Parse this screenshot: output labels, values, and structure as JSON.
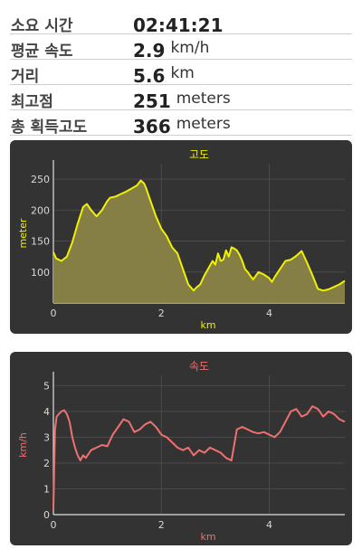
{
  "stats": [
    {
      "label": "소요 시간",
      "value": "02:41:21",
      "unit": ""
    },
    {
      "label": "평균 속도",
      "value": "2.9",
      "unit": "km/h"
    },
    {
      "label": "거리",
      "value": "5.6",
      "unit": "km"
    },
    {
      "label": "최고점",
      "value": "251",
      "unit": "meters"
    },
    {
      "label": "총 획득고도",
      "value": "366",
      "unit": "meters"
    }
  ],
  "chart_data": [
    {
      "type": "area",
      "title": "고도",
      "xlabel": "km",
      "ylabel": "meter",
      "xlim": [
        0,
        5.4
      ],
      "ylim": [
        50,
        275
      ],
      "xticks": [
        "0",
        "2",
        "4"
      ],
      "xtick_values": [
        0,
        2,
        4
      ],
      "yticks": [
        "100",
        "150",
        "200",
        "250"
      ],
      "ytick_values": [
        100,
        150,
        200,
        250
      ],
      "color": "#f0f000",
      "fill": "#8a8448",
      "x": [
        0,
        0.05,
        0.15,
        0.25,
        0.35,
        0.45,
        0.55,
        0.62,
        0.7,
        0.8,
        0.9,
        1.0,
        1.05,
        1.15,
        1.25,
        1.35,
        1.45,
        1.55,
        1.62,
        1.68,
        1.72,
        1.8,
        1.9,
        2.0,
        2.1,
        2.2,
        2.3,
        2.4,
        2.5,
        2.6,
        2.65,
        2.72,
        2.8,
        2.9,
        2.95,
        3.0,
        3.05,
        3.1,
        3.15,
        3.2,
        3.25,
        3.3,
        3.35,
        3.4,
        3.45,
        3.5,
        3.55,
        3.6,
        3.7,
        3.8,
        3.9,
        4.0,
        4.05,
        4.1,
        4.2,
        4.3,
        4.4,
        4.5,
        4.6,
        4.7,
        4.8,
        4.9,
        5.0,
        5.1,
        5.2,
        5.3,
        5.4
      ],
      "values": [
        132,
        122,
        118,
        125,
        148,
        178,
        205,
        210,
        200,
        190,
        200,
        215,
        220,
        222,
        226,
        230,
        235,
        240,
        248,
        243,
        235,
        215,
        190,
        170,
        158,
        140,
        130,
        105,
        80,
        70,
        75,
        80,
        95,
        110,
        118,
        112,
        130,
        118,
        120,
        135,
        125,
        140,
        138,
        135,
        128,
        118,
        105,
        100,
        88,
        100,
        96,
        90,
        84,
        92,
        105,
        118,
        120,
        126,
        134,
        115,
        95,
        73,
        70,
        72,
        76,
        80,
        86
      ]
    },
    {
      "type": "line",
      "title": "속도",
      "xlabel": "km",
      "ylabel": "km/h",
      "xlim": [
        0,
        5.4
      ],
      "ylim": [
        0,
        5.4
      ],
      "xticks": [
        "0",
        "2",
        "4"
      ],
      "xtick_values": [
        0,
        2,
        4
      ],
      "yticks": [
        "0",
        "1",
        "2",
        "3",
        "4",
        "5"
      ],
      "ytick_values": [
        0,
        1,
        2,
        3,
        4,
        5
      ],
      "color": "#f07070",
      "x": [
        0,
        0.03,
        0.06,
        0.1,
        0.15,
        0.2,
        0.25,
        0.3,
        0.35,
        0.4,
        0.45,
        0.5,
        0.55,
        0.6,
        0.7,
        0.8,
        0.9,
        1.0,
        1.1,
        1.2,
        1.3,
        1.4,
        1.5,
        1.6,
        1.7,
        1.8,
        1.9,
        2.0,
        2.1,
        2.2,
        2.3,
        2.4,
        2.5,
        2.6,
        2.7,
        2.8,
        2.9,
        3.0,
        3.1,
        3.2,
        3.3,
        3.4,
        3.5,
        3.6,
        3.7,
        3.8,
        3.9,
        4.0,
        4.1,
        4.2,
        4.3,
        4.4,
        4.5,
        4.6,
        4.7,
        4.8,
        4.9,
        5.0,
        5.1,
        5.2,
        5.3,
        5.4
      ],
      "values": [
        0.2,
        3.3,
        3.8,
        3.9,
        4.0,
        4.05,
        3.9,
        3.6,
        3.0,
        2.6,
        2.3,
        2.1,
        2.3,
        2.2,
        2.5,
        2.6,
        2.7,
        2.65,
        3.1,
        3.4,
        3.7,
        3.6,
        3.2,
        3.3,
        3.5,
        3.6,
        3.4,
        3.1,
        3.0,
        2.8,
        2.6,
        2.5,
        2.6,
        2.3,
        2.5,
        2.4,
        2.6,
        2.5,
        2.4,
        2.2,
        2.1,
        3.3,
        3.4,
        3.3,
        3.2,
        3.15,
        3.2,
        3.1,
        3.0,
        3.2,
        3.6,
        4.0,
        4.1,
        3.8,
        3.9,
        4.2,
        4.1,
        3.8,
        4.0,
        3.9,
        3.7,
        3.6
      ]
    }
  ]
}
